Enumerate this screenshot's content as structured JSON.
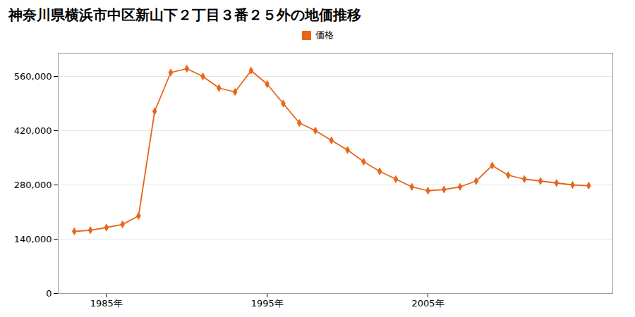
{
  "chart_data": {
    "type": "line",
    "title": "神奈川県横浜市中区新山下２丁目３番２５外の地価推移",
    "x": [
      1983,
      1984,
      1985,
      1986,
      1987,
      1988,
      1989,
      1990,
      1991,
      1992,
      1993,
      1994,
      1995,
      1996,
      1997,
      1998,
      1999,
      2000,
      2001,
      2002,
      2003,
      2004,
      2005,
      2006,
      2007,
      2008,
      2009,
      2010,
      2011,
      2012,
      2013,
      2014,
      2015
    ],
    "series": [
      {
        "name": "価格",
        "color": "#E8651A",
        "marker": "diamond",
        "values": [
          160000,
          163000,
          170000,
          178000,
          200000,
          470000,
          570000,
          580000,
          560000,
          530000,
          520000,
          575000,
          540000,
          490000,
          440000,
          420000,
          395000,
          370000,
          340000,
          315000,
          295000,
          275000,
          265000,
          268000,
          275000,
          290000,
          330000,
          305000,
          295000,
          290000,
          285000,
          280000,
          278000
        ]
      }
    ],
    "xlim": [
      1982,
      2016.5
    ],
    "xticks": [
      {
        "value": 1985,
        "label": "1985年"
      },
      {
        "value": 1995,
        "label": "1995年"
      },
      {
        "value": 2005,
        "label": "2005年"
      }
    ],
    "ylim": [
      0,
      620000
    ],
    "yticks": [
      0,
      {
        "value": 140000,
        "label": "140,000"
      },
      {
        "value": 280000,
        "label": "280,000"
      },
      {
        "value": 420000,
        "label": "420,000"
      },
      {
        "value": 560000,
        "label": "560,000"
      }
    ],
    "grid": "y",
    "legend": "top"
  }
}
